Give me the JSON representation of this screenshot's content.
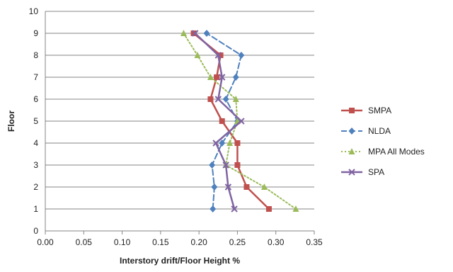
{
  "chart_data": {
    "type": "line",
    "title": "",
    "xlabel": "Interstory drift/Floor Height %",
    "ylabel": "Floor",
    "xlim": [
      0,
      0.35
    ],
    "ylim": [
      0,
      10
    ],
    "x_ticks": [
      "0.00",
      "0.05",
      "0.10",
      "0.15",
      "0.20",
      "0.25",
      "0.30",
      "0.35"
    ],
    "y_ticks": [
      "0",
      "1",
      "2",
      "3",
      "4",
      "5",
      "6",
      "7",
      "8",
      "9",
      "10"
    ],
    "grid": "horizontal",
    "legend_position": "right",
    "series": [
      {
        "name": "SMPA",
        "color": "#c0504d",
        "line_style": "solid",
        "marker": "square",
        "points": [
          [
            0.291,
            1
          ],
          [
            0.262,
            2
          ],
          [
            0.25,
            3
          ],
          [
            0.25,
            4
          ],
          [
            0.23,
            5
          ],
          [
            0.215,
            6
          ],
          [
            0.223,
            7
          ],
          [
            0.228,
            8
          ],
          [
            0.193,
            9
          ]
        ]
      },
      {
        "name": "NLDA",
        "color": "#4f81bd",
        "line_style": "dashed",
        "marker": "diamond",
        "points": [
          [
            0.218,
            1
          ],
          [
            0.22,
            2
          ],
          [
            0.217,
            3
          ],
          [
            0.23,
            4
          ],
          [
            0.25,
            5
          ],
          [
            0.235,
            6
          ],
          [
            0.248,
            7
          ],
          [
            0.255,
            8
          ],
          [
            0.21,
            9
          ]
        ]
      },
      {
        "name": "MPA All Modes",
        "color": "#9bbb59",
        "line_style": "dotted",
        "marker": "triangle",
        "points": [
          [
            0.326,
            1
          ],
          [
            0.285,
            2
          ],
          [
            0.235,
            3
          ],
          [
            0.24,
            4
          ],
          [
            0.25,
            5
          ],
          [
            0.248,
            6
          ],
          [
            0.215,
            7
          ],
          [
            0.198,
            8
          ],
          [
            0.18,
            9
          ]
        ]
      },
      {
        "name": "SPA",
        "color": "#8064a2",
        "line_style": "solid",
        "marker": "x",
        "points": [
          [
            0.246,
            1
          ],
          [
            0.238,
            2
          ],
          [
            0.235,
            3
          ],
          [
            0.222,
            4
          ],
          [
            0.255,
            5
          ],
          [
            0.225,
            6
          ],
          [
            0.23,
            7
          ],
          [
            0.225,
            8
          ],
          [
            0.195,
            9
          ]
        ]
      }
    ]
  }
}
